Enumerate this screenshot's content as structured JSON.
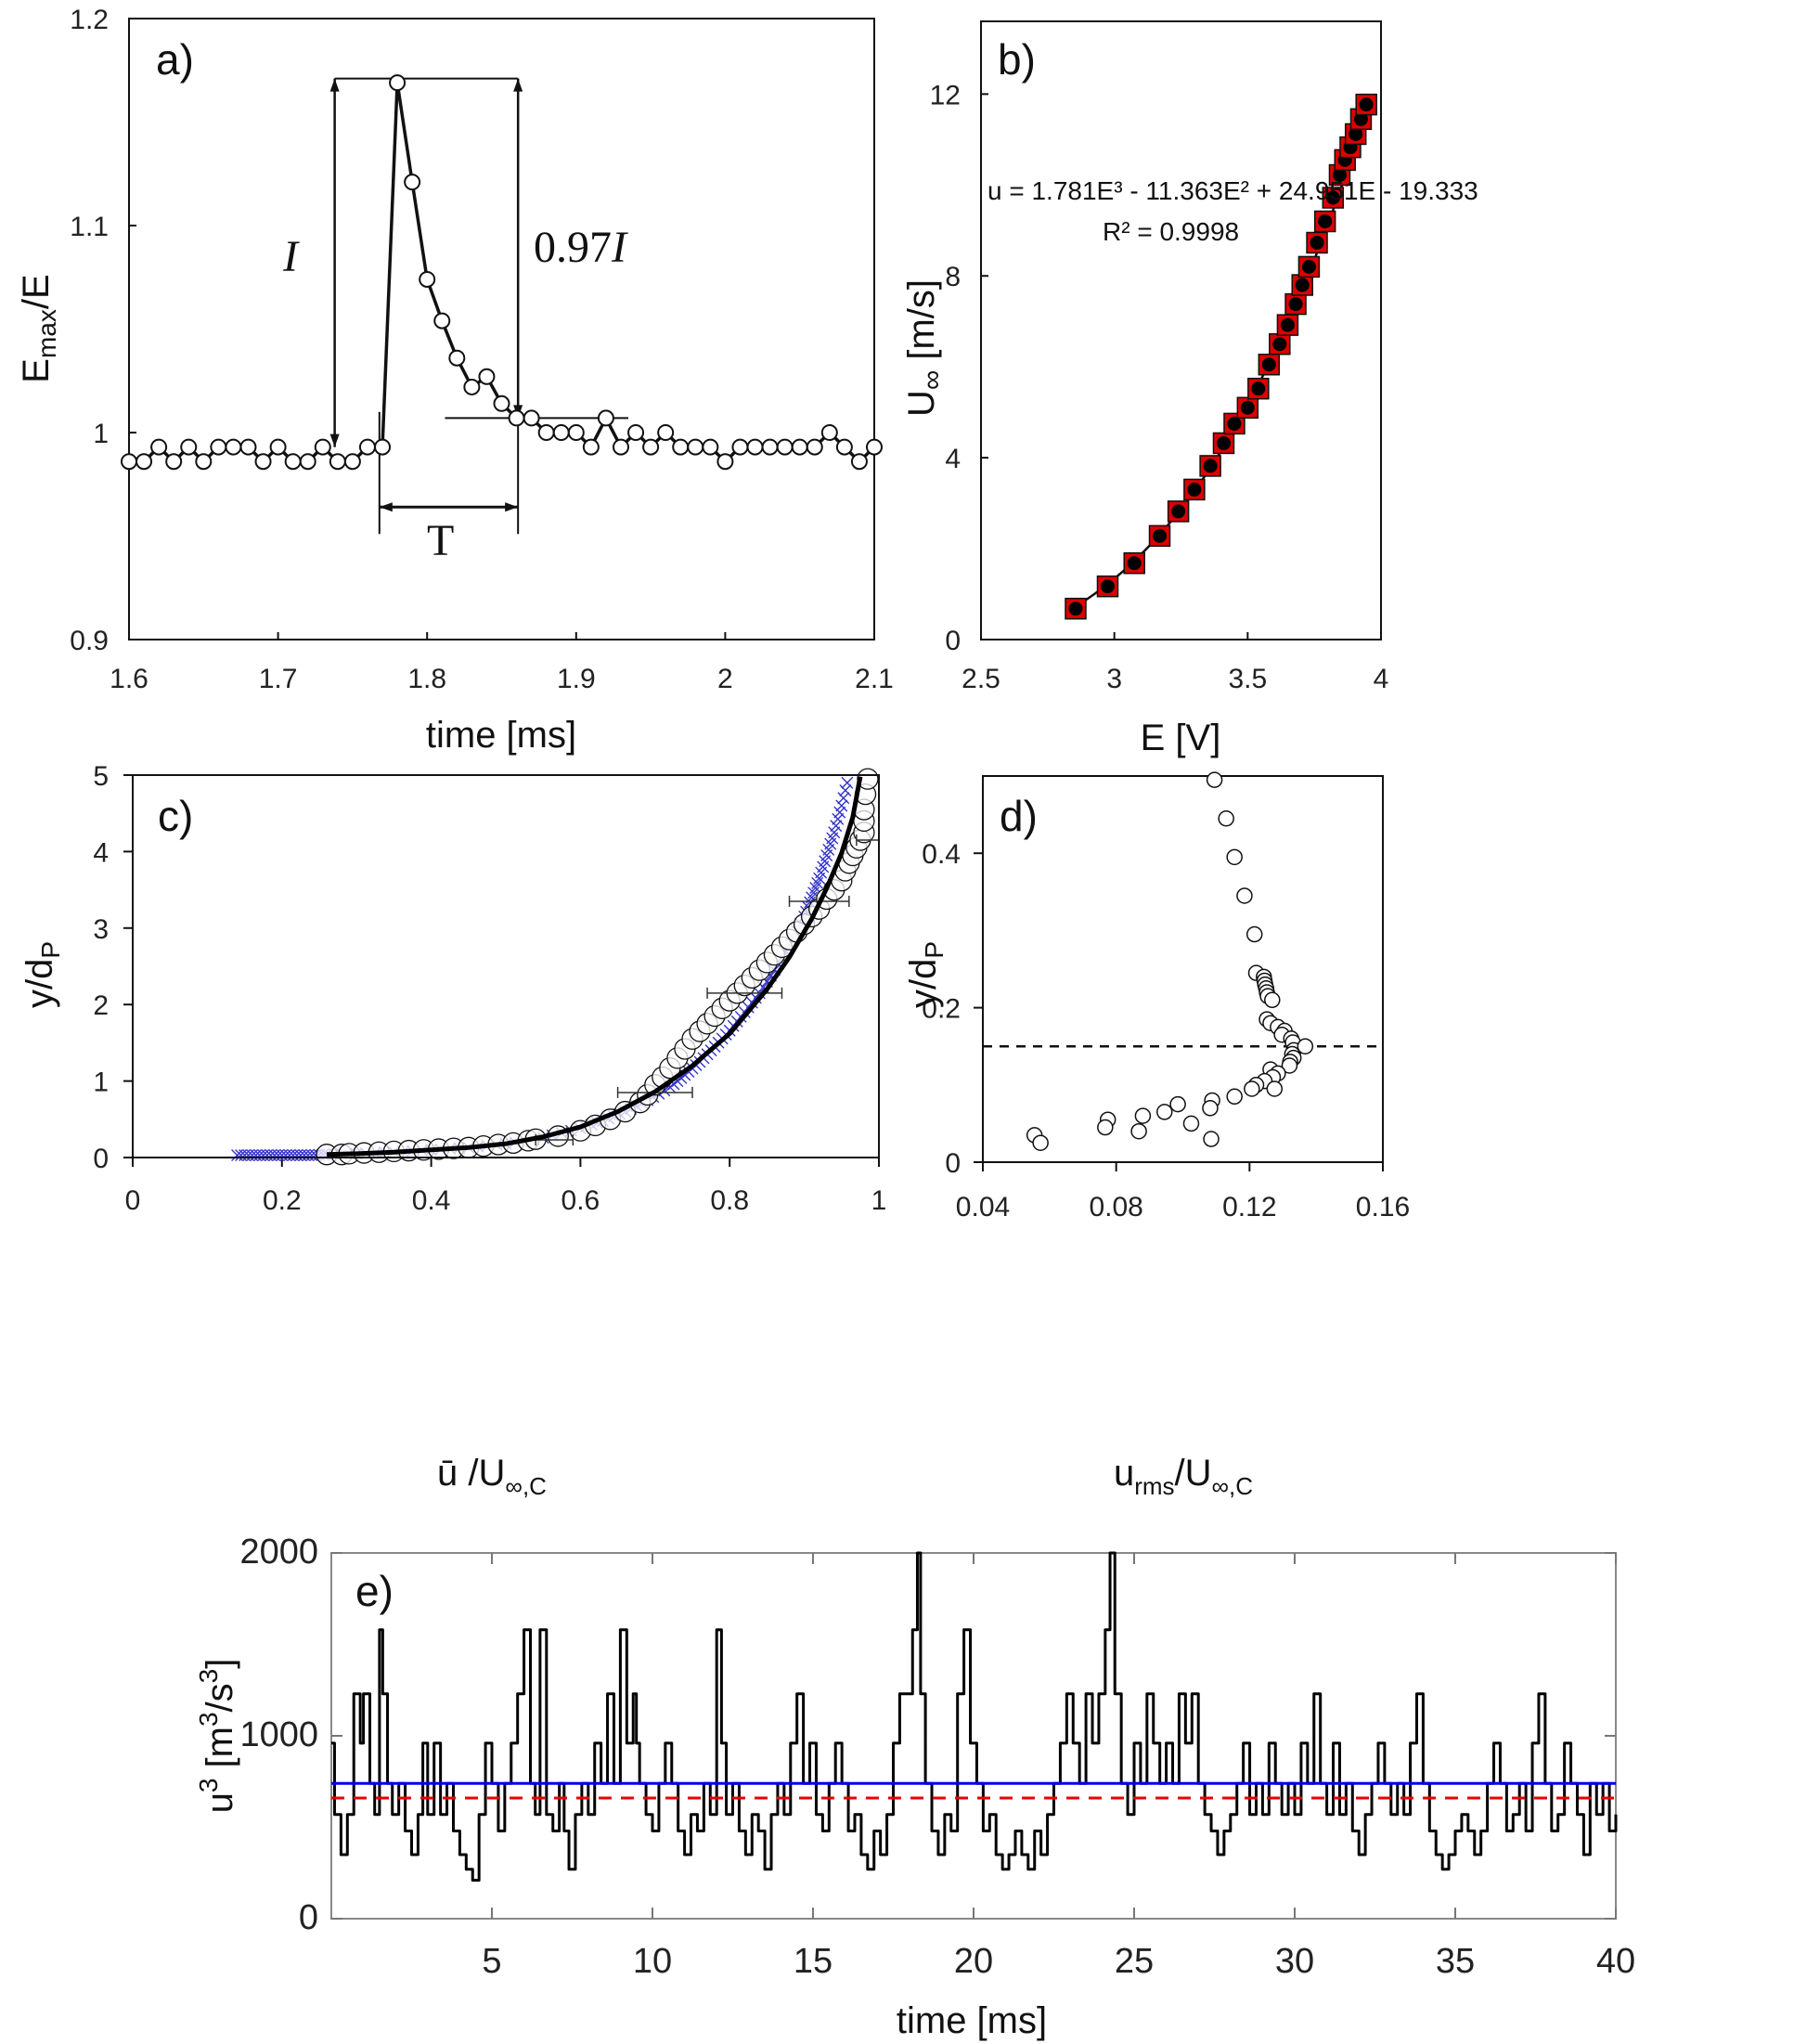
{
  "chart_data": [
    {
      "id": "a",
      "type": "line",
      "panel_label": "a)",
      "xlabel": "time [ms]",
      "ylabel_main": "E",
      "ylabel_sub": "max",
      "ylabel_tail": "/E",
      "xlim": [
        1.6,
        2.1
      ],
      "ylim": [
        0.9,
        1.2
      ],
      "xticks": [
        "1.6",
        "1.7",
        "1.8",
        "1.9",
        "2",
        "2.1"
      ],
      "xtick_values": [
        1.6,
        1.7,
        1.8,
        1.9,
        2.0,
        2.1
      ],
      "yticks": [
        "0.9",
        "1",
        "1.1",
        "1.2"
      ],
      "ytick_values": [
        0.9,
        1.0,
        1.1,
        1.2
      ],
      "marker": "open-circle",
      "x_start": 1.6,
      "x_step": 0.01,
      "y": [
        0.986,
        0.986,
        0.993,
        0.986,
        0.993,
        0.986,
        0.993,
        0.993,
        0.993,
        0.986,
        0.993,
        0.986,
        0.986,
        0.993,
        0.986,
        0.986,
        0.993,
        0.993,
        1.169,
        1.121,
        1.074,
        1.054,
        1.036,
        1.022,
        1.027,
        1.014,
        1.007,
        1.007,
        1.0,
        1.0,
        1.0,
        0.993,
        1.007,
        0.993,
        1.0,
        0.993,
        1.0,
        0.993,
        0.993,
        0.993,
        0.986,
        0.993,
        0.993,
        0.993,
        0.993,
        0.993,
        0.993,
        1.0,
        0.993,
        0.986,
        0.993
      ],
      "annotations": {
        "I_label": "I",
        "I_arrow": {
          "x": 1.738,
          "y_from": 0.993,
          "y_to": 1.171
        },
        "peak_line": {
          "x_from": 1.738,
          "x_to": 1.861,
          "y": 1.171
        },
        "frac_label": "0.97",
        "frac_label_italic": "I",
        "frac_arrow": {
          "x": 1.861,
          "y_from": 1.007,
          "y_to": 1.171
        },
        "threshold_line": {
          "x_from": 1.812,
          "x_to": 1.935,
          "y": 1.007
        },
        "T_label": "T",
        "T_arrow": {
          "x_from": 1.768,
          "x_to": 1.861,
          "y": 0.964
        },
        "T_bounds": {
          "x_left": 1.768,
          "x_right": 1.861,
          "y_top": 1.01,
          "y_bottom": 0.951
        }
      }
    },
    {
      "id": "b",
      "type": "scatter",
      "panel_label": "b)",
      "xlabel": "E [V]",
      "ylabel_main": "U",
      "ylabel_sub": "∞",
      "ylabel_tail": " [m/s]",
      "xlim": [
        2.5,
        4.0
      ],
      "ylim": [
        0,
        13.6
      ],
      "xticks": [
        "2.5",
        "3",
        "3.5",
        "4"
      ],
      "xtick_values": [
        2.5,
        3.0,
        3.5,
        4.0
      ],
      "yticks": [
        "0",
        "4",
        "8",
        "12"
      ],
      "ytick_values": [
        0,
        4,
        8,
        12
      ],
      "equation": "u = 1.781E³ - 11.363E² + 24.951E - 19.333",
      "r_squared": "R² = 0.9998",
      "marker_square_color": "#dd0000",
      "marker_dot_color": "#000000",
      "fit_coefficients": [
        1.781,
        -11.363,
        24.951,
        -19.333
      ],
      "x": [
        2.855,
        2.975,
        3.075,
        3.17,
        3.24,
        3.3,
        3.36,
        3.41,
        3.45,
        3.5,
        3.54,
        3.58,
        3.62,
        3.65,
        3.68,
        3.705,
        3.73,
        3.76,
        3.79,
        3.82,
        3.845,
        3.865,
        3.885,
        3.905,
        3.925,
        3.945
      ],
      "y": [
        0.68,
        1.17,
        1.68,
        2.28,
        2.82,
        3.3,
        3.82,
        4.32,
        4.75,
        5.1,
        5.52,
        6.05,
        6.5,
        6.92,
        7.38,
        7.8,
        8.2,
        8.73,
        9.2,
        9.72,
        10.22,
        10.55,
        10.83,
        11.12,
        11.45,
        11.77
      ]
    },
    {
      "id": "c",
      "type": "scatter",
      "panel_label": "c)",
      "xlabel_main": "ū /U",
      "xlabel_sub": "∞,C",
      "ylabel_main": "y/d",
      "ylabel_sub": "P",
      "xlim": [
        0,
        1
      ],
      "ylim": [
        0,
        5
      ],
      "xticks": [
        "0",
        "0.2",
        "0.4",
        "0.6",
        "0.8",
        "1"
      ],
      "xtick_values": [
        0,
        0.2,
        0.4,
        0.6,
        0.8,
        1.0
      ],
      "yticks": [
        "0",
        "1",
        "2",
        "3",
        "4",
        "5"
      ],
      "ytick_values": [
        0,
        1,
        2,
        3,
        4,
        5
      ],
      "series": [
        {
          "name": "measured",
          "marker": "open-circle",
          "color": "#000000",
          "x": [
            0.26,
            0.28,
            0.29,
            0.31,
            0.33,
            0.35,
            0.37,
            0.39,
            0.41,
            0.43,
            0.45,
            0.47,
            0.49,
            0.51,
            0.53,
            0.54,
            0.57,
            0.6,
            0.62,
            0.64,
            0.66,
            0.68,
            0.69,
            0.7,
            0.71,
            0.72,
            0.73,
            0.74,
            0.75,
            0.76,
            0.77,
            0.78,
            0.79,
            0.8,
            0.81,
            0.82,
            0.83,
            0.84,
            0.85,
            0.86,
            0.87,
            0.88,
            0.89,
            0.9,
            0.91,
            0.92,
            0.93,
            0.94,
            0.95,
            0.955,
            0.96,
            0.965,
            0.97,
            0.975,
            0.98,
            0.98,
            0.98,
            0.982,
            0.985
          ],
          "y": [
            0.04,
            0.04,
            0.05,
            0.06,
            0.07,
            0.08,
            0.09,
            0.1,
            0.11,
            0.12,
            0.13,
            0.15,
            0.17,
            0.19,
            0.22,
            0.24,
            0.28,
            0.35,
            0.42,
            0.5,
            0.6,
            0.72,
            0.82,
            0.95,
            1.05,
            1.17,
            1.3,
            1.42,
            1.55,
            1.65,
            1.75,
            1.85,
            1.95,
            2.05,
            2.15,
            2.25,
            2.35,
            2.45,
            2.55,
            2.65,
            2.75,
            2.85,
            2.95,
            3.05,
            3.15,
            3.25,
            3.38,
            3.5,
            3.62,
            3.75,
            3.85,
            3.95,
            4.05,
            4.15,
            4.25,
            4.4,
            4.55,
            4.75,
            4.95
          ]
        },
        {
          "name": "reference",
          "marker": "x",
          "color": "#3333cc",
          "x": [
            0.14,
            0.16,
            0.18,
            0.2,
            0.22,
            0.24,
            0.26,
            0.3,
            0.35,
            0.4,
            0.45,
            0.5,
            0.55,
            0.6,
            0.63,
            0.66,
            0.69,
            0.72,
            0.74,
            0.76,
            0.78,
            0.8,
            0.82,
            0.84,
            0.86,
            0.88,
            0.9,
            0.91,
            0.92,
            0.93,
            0.94,
            0.95,
            0.96
          ],
          "y": [
            0.03,
            0.03,
            0.03,
            0.03,
            0.03,
            0.03,
            0.04,
            0.05,
            0.07,
            0.1,
            0.13,
            0.18,
            0.26,
            0.38,
            0.48,
            0.6,
            0.75,
            0.92,
            1.08,
            1.25,
            1.45,
            1.66,
            1.9,
            2.15,
            2.45,
            2.78,
            3.15,
            3.4,
            3.65,
            3.95,
            4.25,
            4.6,
            5.0
          ]
        },
        {
          "name": "fit",
          "type": "line",
          "color": "#000000",
          "x": [
            0.26,
            0.3,
            0.35,
            0.4,
            0.45,
            0.5,
            0.55,
            0.6,
            0.65,
            0.7,
            0.75,
            0.8,
            0.85,
            0.88,
            0.91,
            0.93,
            0.95,
            0.965,
            0.975
          ],
          "y": [
            0.04,
            0.05,
            0.07,
            0.1,
            0.13,
            0.18,
            0.27,
            0.4,
            0.6,
            0.86,
            1.2,
            1.62,
            2.2,
            2.62,
            3.12,
            3.52,
            3.98,
            4.45,
            4.98
          ]
        }
      ],
      "error_bars": [
        {
          "y": 0.23,
          "x_low": 0.54,
          "x_high": 0.59
        },
        {
          "y": 0.85,
          "x_low": 0.65,
          "x_high": 0.75
        },
        {
          "y": 2.15,
          "x_low": 0.77,
          "x_high": 0.87
        },
        {
          "y": 3.35,
          "x_low": 0.88,
          "x_high": 0.96
        },
        {
          "y": 4.15,
          "x_low": 0.97,
          "x_high": 1.0
        }
      ]
    },
    {
      "id": "d",
      "type": "scatter",
      "panel_label": "d)",
      "xlabel_main": "u",
      "xlabel_sub1": "rms",
      "xlabel_mid": "/U",
      "xlabel_sub2": "∞,C",
      "ylabel_main": "y/d",
      "ylabel_sub": "P",
      "xlim": [
        0.04,
        0.16
      ],
      "ylim": [
        0,
        0.5
      ],
      "xticks": [
        "0.04",
        "0.08",
        "0.12",
        "0.16"
      ],
      "xtick_values": [
        0.04,
        0.08,
        0.12,
        0.16
      ],
      "yticks": [
        "0",
        "0.2",
        "0.4"
      ],
      "ytick_values": [
        0,
        0.2,
        0.4
      ],
      "dashed_line_y": 0.15,
      "marker": "open-circle",
      "x": [
        0.1095,
        0.113,
        0.1155,
        0.1185,
        0.1215,
        0.122,
        0.1243,
        0.1245,
        0.1247,
        0.125,
        0.1252,
        0.1255,
        0.1268,
        0.1252,
        0.1263,
        0.1285,
        0.1305,
        0.1297,
        0.1325,
        0.133,
        0.1333,
        0.1328,
        0.1332,
        0.1322,
        0.132,
        0.1367,
        0.1263,
        0.1285,
        0.127,
        0.1245,
        0.122,
        0.1207,
        0.1275,
        0.1155,
        0.1088,
        0.1082,
        0.0985,
        0.0945,
        0.088,
        0.0775,
        0.0767,
        0.0868,
        0.1025,
        0.1085,
        0.0555,
        0.0573
      ],
      "y": [
        0.495,
        0.445,
        0.395,
        0.345,
        0.295,
        0.245,
        0.24,
        0.235,
        0.23,
        0.225,
        0.22,
        0.215,
        0.21,
        0.185,
        0.18,
        0.175,
        0.17,
        0.165,
        0.16,
        0.155,
        0.145,
        0.14,
        0.135,
        0.13,
        0.125,
        0.15,
        0.12,
        0.115,
        0.11,
        0.105,
        0.1,
        0.095,
        0.095,
        0.085,
        0.08,
        0.07,
        0.075,
        0.065,
        0.06,
        0.055,
        0.045,
        0.04,
        0.05,
        0.03,
        0.035,
        0.025
      ]
    },
    {
      "id": "e",
      "type": "line",
      "panel_label": "e)",
      "xlabel": "time [ms]",
      "ylabel_main": "u",
      "ylabel_sup": "3",
      "ylabel_bracket": " [m",
      "ylabel_sup2": "3",
      "ylabel_tail": "/s",
      "ylabel_sup3": "3",
      "ylabel_close": "]",
      "xlim": [
        0,
        40
      ],
      "ylim": [
        0,
        2000
      ],
      "xticks": [
        "5",
        "10",
        "15",
        "20",
        "25",
        "30",
        "35",
        "40"
      ],
      "xtick_values": [
        5,
        10,
        15,
        20,
        25,
        30,
        35,
        40
      ],
      "yticks": [
        "0",
        "1000",
        "2000"
      ],
      "ytick_values": [
        0,
        1000,
        2000
      ],
      "reference_lines": [
        {
          "name": "mean-u3",
          "value": 740,
          "color": "#0000ee",
          "style": "solid"
        },
        {
          "name": "cube-of-mean",
          "value": 660,
          "color": "#ee0000",
          "style": "dashed"
        }
      ],
      "signal_levels": [
        210,
        270,
        350,
        480,
        570,
        740,
        960,
        1230,
        1580,
        2000
      ],
      "signal": {
        "t": [
          0,
          0.1,
          0.3,
          0.5,
          0.7,
          0.9,
          1.0,
          1.2,
          1.35,
          1.5,
          1.6,
          1.75,
          1.9,
          2.1,
          2.3,
          2.5,
          2.7,
          2.85,
          3.0,
          3.2,
          3.4,
          3.6,
          3.8,
          4.0,
          4.2,
          4.4,
          4.6,
          4.8,
          5.0,
          5.2,
          5.4,
          5.6,
          5.8,
          6.0,
          6.2,
          6.35,
          6.5,
          6.7,
          6.9,
          7.1,
          7.25,
          7.4,
          7.6,
          7.8,
          8.0,
          8.2,
          8.4,
          8.6,
          8.8,
          9.0,
          9.2,
          9.4,
          9.5,
          9.6,
          9.8,
          10.0,
          10.2,
          10.4,
          10.6,
          10.8,
          11.0,
          11.2,
          11.4,
          11.6,
          11.8,
          12.0,
          12.15,
          12.3,
          12.5,
          12.7,
          12.9,
          13.1,
          13.3,
          13.5,
          13.7,
          13.9,
          14.1,
          14.3,
          14.5,
          14.7,
          14.9,
          15.1,
          15.3,
          15.5,
          15.7,
          15.9,
          16.1,
          16.3,
          16.5,
          16.7,
          16.9,
          17.1,
          17.3,
          17.5,
          17.7,
          17.9,
          18.1,
          18.25,
          18.35,
          18.5,
          18.7,
          18.9,
          19.1,
          19.3,
          19.5,
          19.7,
          19.9,
          20.1,
          20.3,
          20.5,
          20.7,
          20.9,
          21.1,
          21.3,
          21.5,
          21.7,
          21.9,
          22.1,
          22.3,
          22.5,
          22.7,
          22.9,
          23.1,
          23.3,
          23.5,
          23.7,
          23.9,
          24.1,
          24.25,
          24.4,
          24.6,
          24.8,
          25.0,
          25.2,
          25.4,
          25.6,
          25.8,
          26.0,
          26.2,
          26.4,
          26.6,
          26.8,
          27.0,
          27.2,
          27.4,
          27.6,
          27.8,
          28.0,
          28.2,
          28.4,
          28.6,
          28.8,
          29.0,
          29.2,
          29.4,
          29.6,
          29.8,
          30.0,
          30.2,
          30.4,
          30.6,
          30.8,
          31.0,
          31.2,
          31.4,
          31.6,
          31.8,
          32.0,
          32.2,
          32.4,
          32.6,
          32.8,
          33.0,
          33.2,
          33.4,
          33.6,
          33.8,
          34.0,
          34.2,
          34.4,
          34.6,
          34.8,
          35.0,
          35.2,
          35.4,
          35.6,
          35.8,
          36.0,
          36.2,
          36.4,
          36.6,
          36.8,
          37.0,
          37.2,
          37.4,
          37.6,
          37.8,
          38.0,
          38.2,
          38.4,
          38.6,
          38.8,
          39.0,
          39.2,
          39.4,
          39.6,
          39.8,
          40.0
        ],
        "u3": [
          960,
          570,
          350,
          570,
          1230,
          960,
          1230,
          740,
          570,
          1580,
          1230,
          740,
          570,
          740,
          480,
          350,
          570,
          960,
          570,
          960,
          570,
          740,
          480,
          350,
          270,
          210,
          570,
          960,
          740,
          480,
          740,
          960,
          1230,
          1580,
          740,
          570,
          1580,
          570,
          480,
          740,
          480,
          270,
          570,
          740,
          570,
          960,
          740,
          1230,
          740,
          1580,
          960,
          1230,
          960,
          740,
          570,
          480,
          740,
          960,
          740,
          480,
          350,
          570,
          480,
          740,
          570,
          1580,
          960,
          570,
          740,
          480,
          350,
          570,
          480,
          270,
          570,
          740,
          570,
          960,
          1230,
          740,
          960,
          570,
          480,
          740,
          960,
          740,
          480,
          570,
          350,
          270,
          480,
          350,
          570,
          960,
          1230,
          1230,
          1580,
          2000,
          1230,
          740,
          480,
          350,
          570,
          480,
          1230,
          1580,
          960,
          740,
          480,
          570,
          350,
          270,
          350,
          480,
          350,
          270,
          480,
          350,
          570,
          740,
          960,
          1230,
          960,
          740,
          1230,
          960,
          1230,
          1580,
          2000,
          1230,
          740,
          570,
          960,
          740,
          1230,
          960,
          740,
          960,
          740,
          1230,
          960,
          1230,
          740,
          570,
          480,
          350,
          480,
          570,
          740,
          960,
          570,
          740,
          570,
          960,
          740,
          570,
          740,
          570,
          960,
          740,
          1230,
          740,
          570,
          960,
          570,
          740,
          480,
          350,
          570,
          740,
          960,
          740,
          570,
          740,
          570,
          960,
          1230,
          740,
          480,
          350,
          270,
          350,
          480,
          570,
          480,
          350,
          480,
          740,
          960,
          740,
          480,
          570,
          740,
          480,
          960,
          1230,
          740,
          480,
          570,
          960,
          740,
          570,
          350,
          740,
          570,
          740,
          480,
          570
        ]
      }
    }
  ]
}
